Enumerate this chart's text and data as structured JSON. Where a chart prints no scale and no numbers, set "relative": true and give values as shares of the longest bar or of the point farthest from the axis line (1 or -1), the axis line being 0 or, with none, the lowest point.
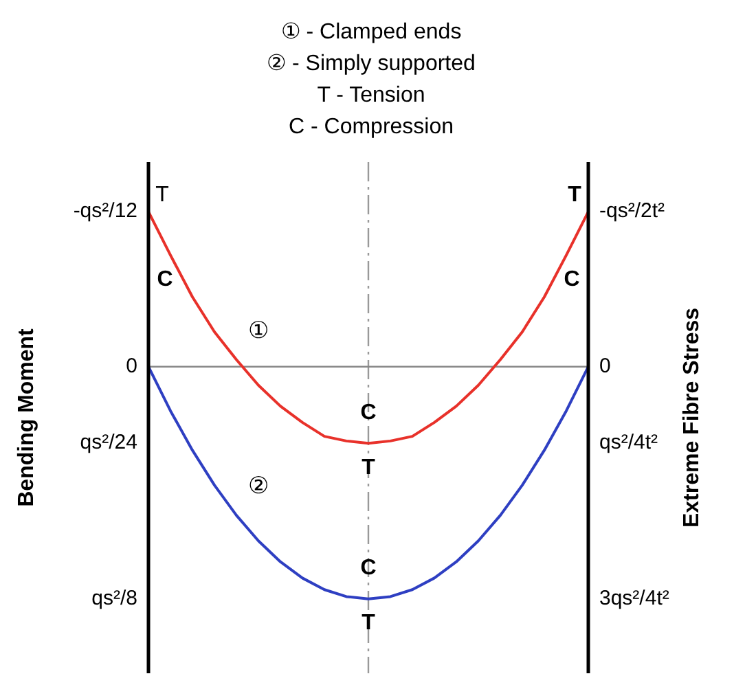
{
  "chart_data": {
    "type": "line",
    "relative": true,
    "ylabel": "Bending Moment",
    "y2label": "Extreme Fibre Stress",
    "categories": [
      null,
      null,
      null,
      null,
      null,
      null,
      null,
      null,
      null,
      null,
      null,
      null,
      null,
      null,
      null,
      null,
      null,
      null,
      null,
      null,
      null
    ],
    "series": [
      {
        "name": "①",
        "color": "#e8312a",
        "values": [
          0.667,
          0.48,
          0.3,
          0.15,
          0.03,
          -0.08,
          -0.17,
          -0.24,
          -0.3,
          -0.32,
          -0.33,
          -0.32,
          -0.3,
          -0.24,
          -0.17,
          -0.08,
          0.03,
          0.15,
          0.3,
          0.48,
          0.667
        ]
      },
      {
        "name": "②",
        "color": "#2e3fc2",
        "values": [
          0,
          -0.19,
          -0.36,
          -0.51,
          -0.64,
          -0.75,
          -0.84,
          -0.91,
          -0.96,
          -0.99,
          -1,
          -0.99,
          -0.96,
          -0.91,
          -0.84,
          -0.75,
          -0.64,
          -0.51,
          -0.36,
          -0.19,
          0
        ]
      }
    ],
    "legend": false,
    "marker": "none",
    "line_style": "solid",
    "annotations": [
      "① - Clamped ends",
      "② - Simply supported",
      "T - Tension",
      "C - Compression",
      "-qs²/12",
      "0",
      "qs²/24",
      "qs²/8",
      "-qs²/2t²",
      "0",
      "qs²/4t²",
      "3qs²/4t²",
      "T",
      "C",
      "T",
      "C",
      "C",
      "T",
      "C",
      "T"
    ]
  }
}
